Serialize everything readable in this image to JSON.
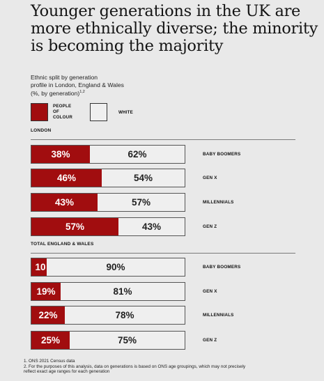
{
  "title_lines": [
    "Younger generations in the UK are",
    "more ethnically diverse; the minority",
    "is becoming the majority"
  ],
  "subtitle_lines": [
    "Ethnic split by generation",
    "profile in London, England & Wales",
    "(%, by generation)"
  ],
  "subtitle_sup": "1,2",
  "legend": {
    "poc_label_lines": [
      "PEOPLE",
      "OF",
      "COLOUR"
    ],
    "white_label": "WHITE"
  },
  "colors": {
    "poc": "#a10d0f",
    "white": "#efefef"
  },
  "chart_data": [
    {
      "type": "bar",
      "section": "LONDON",
      "categories": [
        "BABY BOOMERS",
        "GEN X",
        "MILLENNIALS",
        "GEN Z"
      ],
      "series": [
        {
          "name": "PEOPLE OF COLOUR",
          "values": [
            38,
            46,
            43,
            57
          ],
          "labels": [
            "38%",
            "46%",
            "43%",
            "57%"
          ]
        },
        {
          "name": "WHITE",
          "values": [
            62,
            54,
            57,
            43
          ],
          "labels": [
            "62%",
            "54%",
            "57%",
            "43%"
          ]
        }
      ],
      "stacked": true,
      "orientation": "horizontal",
      "xlim": [
        0,
        100
      ]
    },
    {
      "type": "bar",
      "section": "TOTAL ENGLAND & WALES",
      "categories": [
        "BABY BOOMERS",
        "GEN X",
        "MILLENNIALS",
        "GEN Z"
      ],
      "series": [
        {
          "name": "PEOPLE OF COLOUR",
          "values": [
            10,
            19,
            22,
            25
          ],
          "labels": [
            "10",
            "19%",
            "22%",
            "25%"
          ]
        },
        {
          "name": "WHITE",
          "values": [
            90,
            81,
            78,
            75
          ],
          "labels": [
            "90%",
            "81%",
            "78%",
            "75%"
          ]
        }
      ],
      "stacked": true,
      "orientation": "horizontal",
      "xlim": [
        0,
        100
      ]
    }
  ],
  "footnotes": [
    "1. ONS 2021 Census data",
    "2. For the purposes of this analysis, data on generations is based on ONS age groupings, which may not precisely",
    "reflect exact age ranges for each generation"
  ]
}
